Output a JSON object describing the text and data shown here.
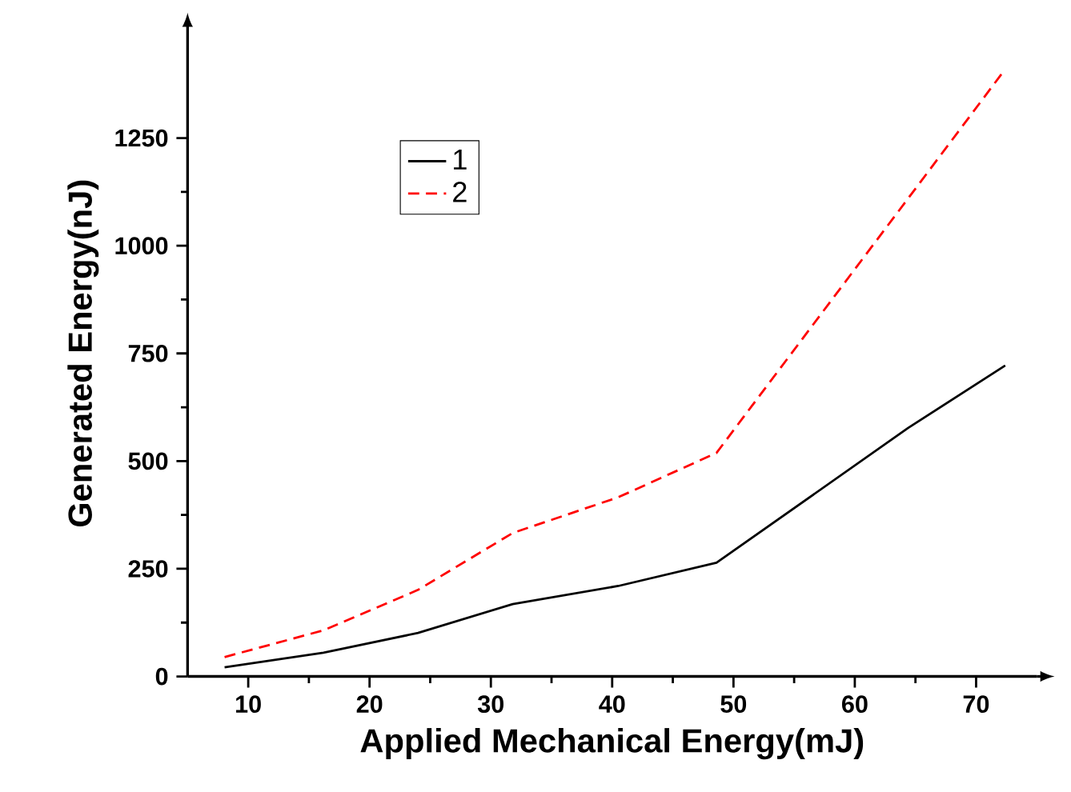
{
  "chart_data": {
    "type": "line",
    "xlabel": "Applied Mechanical Energy(mJ)",
    "ylabel": "Generated Energy(nJ)",
    "xlim": [
      5,
      75
    ],
    "xticks": [
      10,
      20,
      30,
      40,
      50,
      60,
      70
    ],
    "ylim": [
      0,
      1500
    ],
    "yticks": [
      0,
      250,
      500,
      750,
      1000,
      1250
    ],
    "legend": "top left",
    "marker": "none",
    "series": [
      {
        "name": "1",
        "color": "#000000",
        "line_style": "solid",
        "x": [
          8.05,
          16.2,
          24.0,
          31.8,
          40.5,
          48.6,
          64.4,
          72.4
        ],
        "values": [
          21,
          55,
          101,
          168,
          210,
          264,
          577,
          722
        ]
      },
      {
        "name": "2",
        "color": "#ff0000",
        "line_style": "dashed",
        "x": [
          8.05,
          16.2,
          24.0,
          31.8,
          40.5,
          48.6,
          64.4,
          72.4
        ],
        "values": [
          45,
          107,
          201,
          333,
          416,
          519,
          1110,
          1410
        ]
      }
    ]
  }
}
